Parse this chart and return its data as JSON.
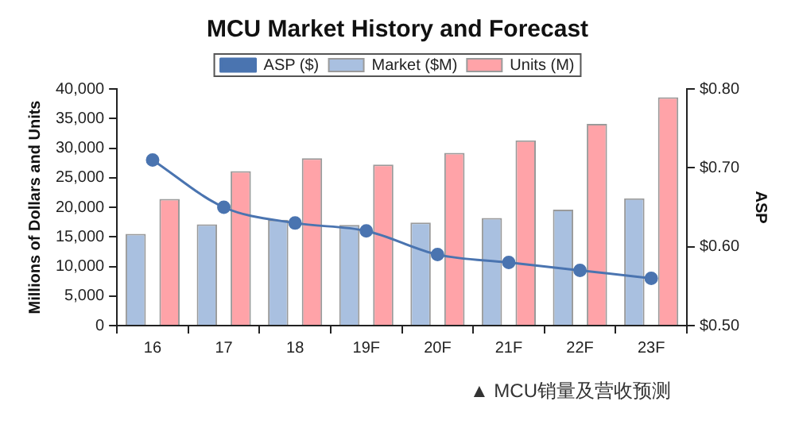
{
  "chart_data": {
    "type": "bar",
    "title": "MCU Market History and Forecast",
    "ylabel": "Millions of Dollars and Units",
    "y2label": "ASP",
    "categories": [
      "16",
      "17",
      "18",
      "19F",
      "20F",
      "21F",
      "22F",
      "23F"
    ],
    "series": [
      {
        "name": "Market ($M)",
        "color": "#a9c0e0",
        "values": [
          15500,
          17100,
          17900,
          17000,
          17400,
          18200,
          19600,
          21500
        ]
      },
      {
        "name": "Units (M)",
        "color": "#ffa3a8",
        "values": [
          21400,
          26100,
          28300,
          27200,
          29200,
          31300,
          34100,
          38600
        ]
      },
      {
        "name": "ASP ($)",
        "type": "line",
        "axis": "y2",
        "color": "#4a74b0",
        "values": [
          0.71,
          0.65,
          0.63,
          0.62,
          0.59,
          0.58,
          0.57,
          0.56
        ]
      }
    ],
    "ylim": [
      0,
      40000
    ],
    "yticks": [
      {
        "value": 0,
        "label": "0"
      },
      {
        "value": 5000,
        "label": "5,000"
      },
      {
        "value": 10000,
        "label": "10,000"
      },
      {
        "value": 15000,
        "label": "15,000"
      },
      {
        "value": 20000,
        "label": "20,000"
      },
      {
        "value": 25000,
        "label": "25,000"
      },
      {
        "value": 30000,
        "label": "30,000"
      },
      {
        "value": 35000,
        "label": "35,000"
      },
      {
        "value": 40000,
        "label": "40,000"
      }
    ],
    "y2lim": [
      0.5,
      0.8
    ],
    "y2ticks": [
      {
        "value": 0.5,
        "label": "$0.50"
      },
      {
        "value": 0.6,
        "label": "$0.60"
      },
      {
        "value": 0.7,
        "label": "$0.70"
      },
      {
        "value": 0.8,
        "label": "$0.80"
      }
    ],
    "grid": false,
    "legend": "top",
    "marker": "circle",
    "annotations": [
      "▲ MCU销量及营收预测"
    ]
  }
}
